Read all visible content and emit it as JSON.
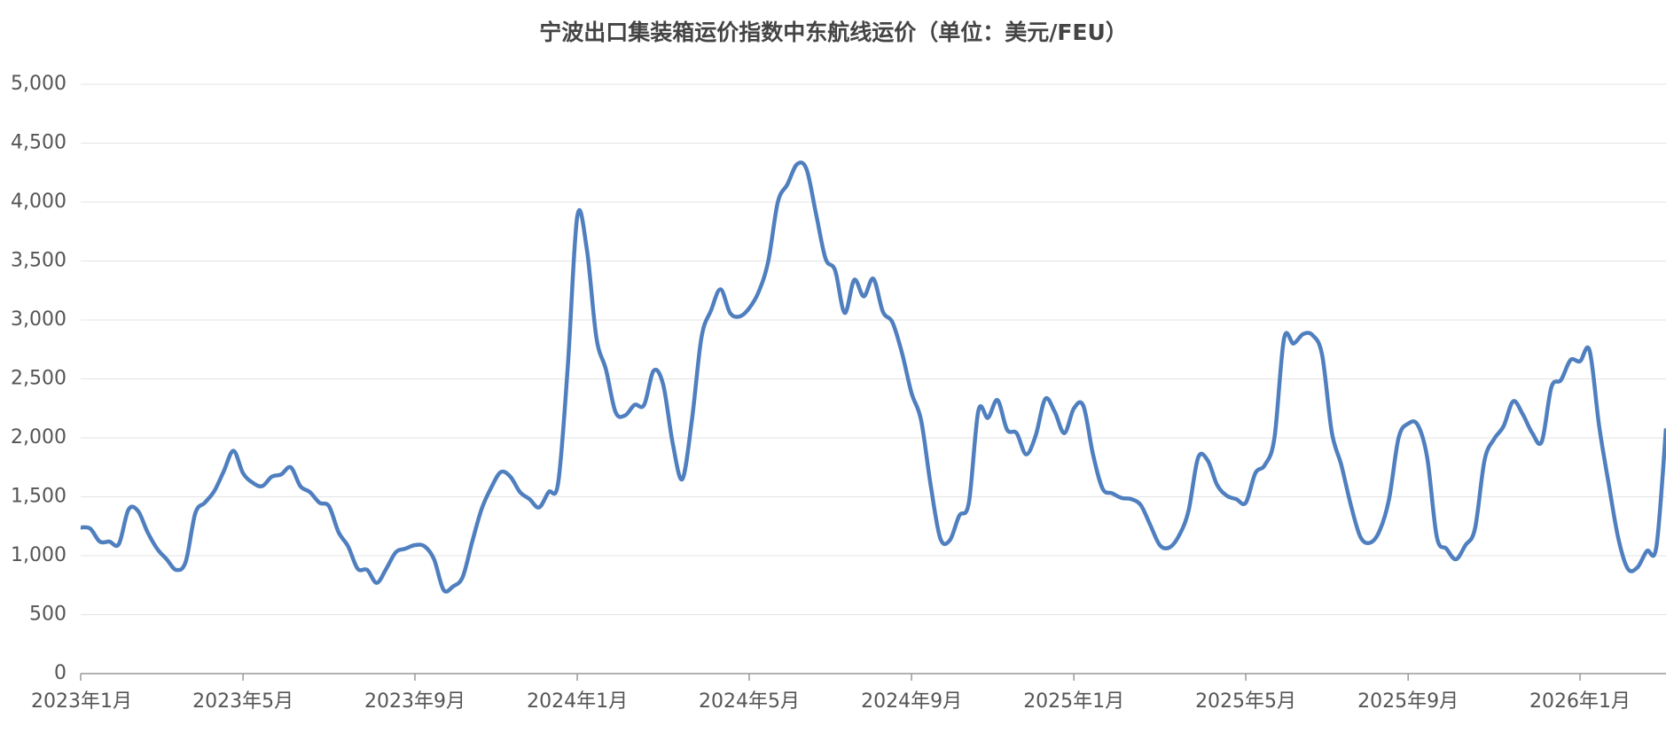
{
  "chart_data": {
    "type": "line",
    "title": "宁波出口集装箱运价指数中东航线运价（单位：美元/FEU）",
    "categories": [
      "2023年1月",
      null,
      null,
      null,
      null,
      null,
      null,
      null,
      null,
      null,
      null,
      null,
      null,
      null,
      null,
      null,
      null,
      "2023年5月",
      null,
      null,
      null,
      null,
      null,
      null,
      null,
      null,
      null,
      null,
      null,
      null,
      null,
      null,
      null,
      null,
      null,
      "2023年9月",
      null,
      null,
      null,
      null,
      null,
      null,
      null,
      null,
      null,
      null,
      null,
      null,
      null,
      null,
      null,
      null,
      "2024年1月",
      null,
      null,
      null,
      null,
      null,
      null,
      null,
      null,
      null,
      null,
      null,
      null,
      null,
      null,
      null,
      null,
      null,
      "2024年5月",
      null,
      null,
      null,
      null,
      null,
      null,
      null,
      null,
      null,
      null,
      null,
      null,
      null,
      null,
      null,
      null,
      "2024年9月",
      null,
      null,
      null,
      null,
      null,
      null,
      null,
      null,
      null,
      null,
      null,
      null,
      null,
      null,
      null,
      null,
      "2025年1月",
      null,
      null,
      null,
      null,
      null,
      null,
      null,
      null,
      null,
      null,
      null,
      null,
      null,
      null,
      null,
      null,
      null,
      "2025年5月",
      null,
      null,
      null,
      null,
      null,
      null,
      null,
      null,
      null,
      null,
      null,
      null,
      null,
      null,
      null,
      null,
      "2025年9月",
      null,
      null,
      null,
      null,
      null,
      null,
      null,
      null,
      null,
      null,
      null,
      null,
      null,
      null,
      null,
      null,
      null,
      "2026年1月",
      null,
      null,
      null,
      null,
      null,
      null,
      null,
      null,
      null
    ],
    "series": [
      {
        "color": "#4f7fbf",
        "values": [
          1240,
          1230,
          1120,
          1120,
          1100,
          1390,
          1380,
          1200,
          1060,
          970,
          880,
          950,
          1360,
          1450,
          1550,
          1720,
          1890,
          1700,
          1620,
          1590,
          1670,
          1690,
          1750,
          1590,
          1540,
          1450,
          1420,
          1200,
          1080,
          890,
          880,
          770,
          890,
          1030,
          1060,
          1090,
          1080,
          970,
          710,
          740,
          820,
          1120,
          1400,
          1580,
          1710,
          1670,
          1540,
          1480,
          1410,
          1540,
          1620,
          2600,
          3880,
          3600,
          2850,
          2580,
          2220,
          2190,
          2280,
          2280,
          2570,
          2450,
          1950,
          1650,
          2150,
          2850,
          3080,
          3260,
          3060,
          3030,
          3100,
          3240,
          3500,
          4000,
          4150,
          4320,
          4280,
          3900,
          3520,
          3420,
          3060,
          3340,
          3200,
          3350,
          3070,
          2980,
          2720,
          2380,
          2150,
          1600,
          1150,
          1130,
          1340,
          1450,
          2230,
          2170,
          2320,
          2070,
          2040,
          1860,
          2020,
          2330,
          2220,
          2040,
          2250,
          2270,
          1860,
          1570,
          1530,
          1490,
          1480,
          1430,
          1260,
          1090,
          1070,
          1170,
          1380,
          1830,
          1810,
          1600,
          1510,
          1480,
          1450,
          1700,
          1770,
          2000,
          2840,
          2800,
          2880,
          2870,
          2700,
          2050,
          1770,
          1430,
          1160,
          1110,
          1210,
          1480,
          2000,
          2120,
          2110,
          1830,
          1160,
          1060,
          970,
          1090,
          1230,
          1810,
          1990,
          2100,
          2310,
          2200,
          2040,
          1970,
          2430,
          2490,
          2660,
          2650,
          2740,
          2100,
          1610,
          1150,
          890,
          900,
          1040,
          1080,
          2080
        ]
      }
    ],
    "ylim": [
      0,
      5000
    ],
    "yticks": [
      0,
      500,
      {
        "value": 1000,
        "label": "1,000"
      },
      {
        "value": 1500,
        "label": "1,500"
      },
      {
        "value": 2000,
        "label": "2,000"
      },
      {
        "value": 2500,
        "label": "2,500"
      },
      {
        "value": 3000,
        "label": "3,000"
      },
      {
        "value": 3500,
        "label": "3,500"
      },
      {
        "value": 4000,
        "label": "4,000"
      },
      {
        "value": 4500,
        "label": "4,500"
      },
      {
        "value": 5000,
        "label": "5,000"
      }
    ],
    "grid": true
  }
}
